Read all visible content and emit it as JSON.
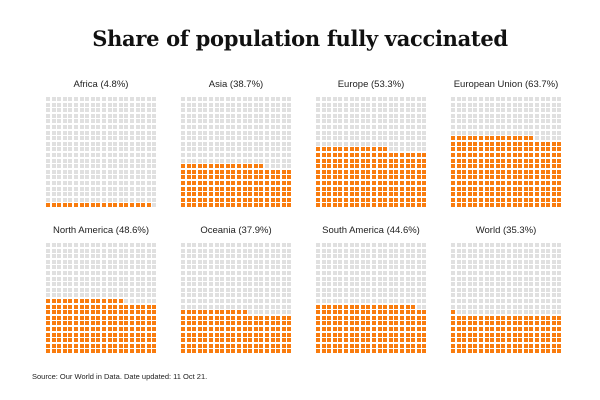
{
  "chart_data": {
    "type": "waffle",
    "title": "Share of population fully vaccinated",
    "grid": {
      "rows": 20,
      "cols": 20,
      "units_total": 400,
      "fill_from": "bottom-left"
    },
    "colors": {
      "filled": "#f97c0e",
      "empty": "#e0e0e0"
    },
    "series": [
      {
        "name": "Africa",
        "value": 4.8,
        "label": "Africa (4.8%)"
      },
      {
        "name": "Asia",
        "value": 38.7,
        "label": "Asia (38.7%)"
      },
      {
        "name": "Europe",
        "value": 53.3,
        "label": "Europe (53.3%)"
      },
      {
        "name": "European Union",
        "value": 63.7,
        "label": "European Union (63.7%)"
      },
      {
        "name": "North America",
        "value": 48.6,
        "label": "North America (48.6%)"
      },
      {
        "name": "Oceania",
        "value": 37.9,
        "label": "Oceania (37.9%)"
      },
      {
        "name": "South America",
        "value": 44.6,
        "label": "South America (44.6%)"
      },
      {
        "name": "World",
        "value": 35.3,
        "label": "World (35.3%)"
      }
    ],
    "source": "Source: Our World in Data. Date updated: 11 Oct 21."
  }
}
